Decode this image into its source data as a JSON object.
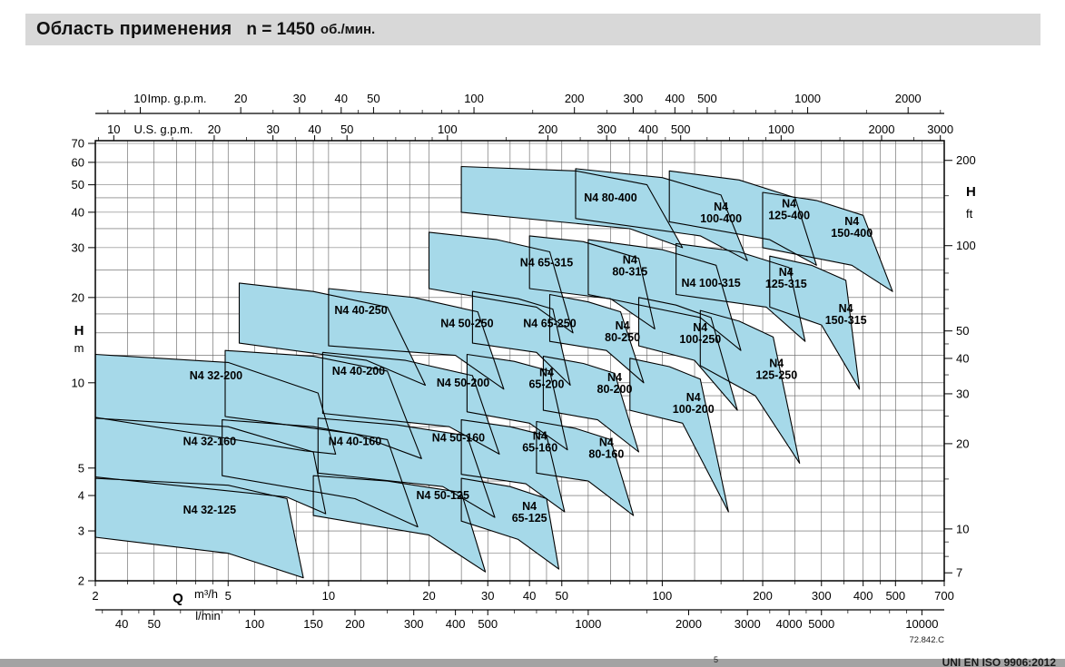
{
  "title": {
    "main": "Область применения",
    "speed": "n = 1450",
    "units": "об./мин."
  },
  "footer": {
    "drawing_number": "72.842.C",
    "standard_text": "UNI EN ISO 9906:2012",
    "footnote_marker": "5"
  },
  "colors": {
    "region_fill": "#a6d9e9",
    "region_stroke": "#000000",
    "grid_line": "#5f5f5f",
    "axis_line": "#000000",
    "title_bar_bg": "#d8d8d8",
    "footer_bar_bg": "#a3a3a3",
    "chart_bg": "#ffffff"
  },
  "chart_data": {
    "type": "area",
    "title": "Область применения n = 1450 об./мин.",
    "x_axis": {
      "symbol": "Q",
      "unit_primary": "m³/h",
      "scale": "log",
      "range_m3h": [
        2,
        700
      ],
      "ticks_m3h": [
        2,
        5,
        10,
        20,
        30,
        40,
        50,
        100,
        200,
        300,
        400,
        500,
        700
      ],
      "secondary_axes": [
        {
          "unit": "l/min",
          "factor_from_m3h": 16.6667,
          "position": "bottom",
          "ticks": [
            40,
            50,
            100,
            150,
            200,
            300,
            400,
            500,
            1000,
            2000,
            3000,
            4000,
            5000,
            10000
          ]
        },
        {
          "unit": "U.S. g.p.m.",
          "factor_from_m3h": 4.4029,
          "position": "top",
          "ticks": [
            10,
            20,
            30,
            40,
            50,
            100,
            200,
            300,
            400,
            500,
            1000,
            2000,
            3000
          ]
        },
        {
          "unit": "Imp. g.p.m.",
          "factor_from_m3h": 3.6662,
          "position": "top",
          "ticks": [
            10,
            20,
            30,
            40,
            50,
            100,
            200,
            300,
            400,
            500,
            1000,
            2000
          ]
        }
      ]
    },
    "y_axis": {
      "symbol": "H",
      "unit_primary": "m",
      "scale": "log",
      "range_m": [
        2,
        70
      ],
      "ticks_m": [
        2,
        3,
        4,
        5,
        10,
        20,
        30,
        40,
        50,
        60,
        70
      ],
      "secondary_axes": [
        {
          "unit": "ft",
          "factor_from_m": 3.2808,
          "position": "right",
          "ticks": [
            7,
            10,
            20,
            30,
            40,
            50,
            100,
            200
          ]
        }
      ]
    },
    "grid": {
      "q_lines": [
        2,
        2.5,
        3,
        3.5,
        4,
        4.5,
        5,
        6,
        7,
        8,
        9,
        10,
        12.5,
        15,
        17.5,
        20,
        25,
        30,
        35,
        40,
        45,
        50,
        60,
        70,
        80,
        90,
        100,
        125,
        150,
        175,
        200,
        250,
        300,
        350,
        400,
        450,
        500,
        600,
        700
      ],
      "h_lines": [
        2,
        2.5,
        3,
        3.5,
        4,
        4.5,
        5,
        5.5,
        6,
        7,
        8,
        9,
        10,
        12.5,
        15,
        17.5,
        20,
        25,
        30,
        35,
        40,
        45,
        50,
        60,
        70
      ]
    },
    "regions": [
      {
        "name": "N4 32-125",
        "wrap": false,
        "label_q": 4.4,
        "label_h": 3.55,
        "points": [
          [
            2,
            4.6
          ],
          [
            5,
            4.35
          ],
          [
            7.5,
            3.9
          ],
          [
            8.4,
            2.05
          ],
          [
            5,
            2.5
          ],
          [
            2,
            2.85
          ]
        ]
      },
      {
        "name": "N4 32-160",
        "wrap": false,
        "label_q": 4.4,
        "label_h": 6.2,
        "points": [
          [
            2,
            7.5
          ],
          [
            5,
            7.0
          ],
          [
            9,
            5.7
          ],
          [
            9.8,
            3.45
          ],
          [
            7.5,
            3.95
          ],
          [
            2,
            4.65
          ]
        ]
      },
      {
        "name": "N4 32-200",
        "wrap": false,
        "label_q": 4.6,
        "label_h": 10.6,
        "points": [
          [
            2,
            12.6
          ],
          [
            5,
            11.8
          ],
          [
            9.3,
            9.2
          ],
          [
            10.5,
            5.6
          ],
          [
            8.5,
            5.75
          ],
          [
            2,
            7.55
          ]
        ]
      },
      {
        "name": "N4 40-160",
        "wrap": false,
        "label_q": 12.0,
        "label_h": 6.2,
        "points": [
          [
            4.8,
            7.4
          ],
          [
            9,
            7.0
          ],
          [
            15,
            6.3
          ],
          [
            18.5,
            3.1
          ],
          [
            12,
            3.9
          ],
          [
            4.8,
            4.7
          ]
        ]
      },
      {
        "name": "N4 40-200",
        "wrap": false,
        "label_q": 12.3,
        "label_h": 11.0,
        "points": [
          [
            4.9,
            13.0
          ],
          [
            9,
            12.4
          ],
          [
            15,
            11.0
          ],
          [
            19,
            5.4
          ],
          [
            12,
            6.6
          ],
          [
            4.9,
            7.6
          ]
        ]
      },
      {
        "name": "N4 40-250",
        "wrap": false,
        "label_q": 12.5,
        "label_h": 18.0,
        "points": [
          [
            5.4,
            22.5
          ],
          [
            9,
            21.0
          ],
          [
            15,
            18.5
          ],
          [
            19.5,
            9.8
          ],
          [
            13,
            12.0
          ],
          [
            5.4,
            13.8
          ]
        ]
      },
      {
        "name": "N4 50-125",
        "wrap": false,
        "label_q": 22,
        "label_h": 4.0,
        "points": [
          [
            9,
            4.7
          ],
          [
            15,
            4.5
          ],
          [
            25,
            4.1
          ],
          [
            29.5,
            2.15
          ],
          [
            20,
            2.9
          ],
          [
            9,
            3.4
          ]
        ]
      },
      {
        "name": "N4 50-160",
        "wrap": false,
        "label_q": 24.5,
        "label_h": 6.4,
        "points": [
          [
            9.3,
            7.5
          ],
          [
            16,
            7.1
          ],
          [
            26,
            6.5
          ],
          [
            31.5,
            3.35
          ],
          [
            22,
            4.3
          ],
          [
            9.3,
            4.8
          ]
        ]
      },
      {
        "name": "N4 50-200",
        "wrap": false,
        "label_q": 25.3,
        "label_h": 10.0,
        "points": [
          [
            9.6,
            12.8
          ],
          [
            17,
            12.0
          ],
          [
            27,
            10.6
          ],
          [
            32.5,
            5.6
          ],
          [
            23,
            7.0
          ],
          [
            9.6,
            7.8
          ]
        ]
      },
      {
        "name": "N4 50-250",
        "wrap": false,
        "label_q": 26,
        "label_h": 16.2,
        "points": [
          [
            10,
            21.5
          ],
          [
            18,
            20.0
          ],
          [
            28,
            17.8
          ],
          [
            33.5,
            9.5
          ],
          [
            24,
            12.5
          ],
          [
            10,
            13.5
          ]
        ]
      },
      {
        "name": "N4 65-125",
        "wrap": true,
        "label_q": 40,
        "label_h": 3.5,
        "points": [
          [
            25,
            4.6
          ],
          [
            35,
            4.3
          ],
          [
            45,
            3.9
          ],
          [
            49,
            2.2
          ],
          [
            37,
            2.8
          ],
          [
            25,
            3.25
          ]
        ]
      },
      {
        "name": "N4 65-160",
        "wrap": true,
        "label_q": 43,
        "label_h": 6.2,
        "points": [
          [
            25,
            7.4
          ],
          [
            35,
            7.0
          ],
          [
            45,
            6.5
          ],
          [
            51,
            3.5
          ],
          [
            39,
            4.4
          ],
          [
            25,
            4.75
          ]
        ]
      },
      {
        "name": "N4 65-200",
        "wrap": true,
        "label_q": 45,
        "label_h": 10.4,
        "points": [
          [
            26,
            12.6
          ],
          [
            36,
            11.9
          ],
          [
            46,
            11.0
          ],
          [
            52,
            5.8
          ],
          [
            40,
            7.2
          ],
          [
            26,
            7.9
          ]
        ]
      },
      {
        "name": "N4 65-250",
        "wrap": false,
        "label_q": 46,
        "label_h": 16.2,
        "points": [
          [
            27,
            21.0
          ],
          [
            37,
            19.8
          ],
          [
            47,
            18.2
          ],
          [
            53,
            9.8
          ],
          [
            42,
            12.8
          ],
          [
            27,
            13.8
          ]
        ]
      },
      {
        "name": "N4 65-315",
        "wrap": false,
        "label_q": 45,
        "label_h": 26.5,
        "points": [
          [
            20,
            34.0
          ],
          [
            32,
            32.0
          ],
          [
            46,
            29.0
          ],
          [
            54,
            15.0
          ],
          [
            42,
            18.5
          ],
          [
            20,
            21.5
          ]
        ]
      },
      {
        "name": "N4 80-160",
        "wrap": true,
        "label_q": 68,
        "label_h": 5.9,
        "points": [
          [
            42,
            7.3
          ],
          [
            55,
            6.9
          ],
          [
            70,
            6.3
          ],
          [
            82,
            3.4
          ],
          [
            60,
            4.5
          ],
          [
            42,
            4.8
          ]
        ]
      },
      {
        "name": "N4 80-200",
        "wrap": true,
        "label_q": 72,
        "label_h": 10.0,
        "points": [
          [
            44,
            12.4
          ],
          [
            58,
            11.7
          ],
          [
            72,
            10.8
          ],
          [
            85,
            5.7
          ],
          [
            64,
            7.4
          ],
          [
            44,
            8.0
          ]
        ]
      },
      {
        "name": "N4 80-250",
        "wrap": true,
        "label_q": 76,
        "label_h": 15.2,
        "points": [
          [
            46,
            20.5
          ],
          [
            60,
            19.3
          ],
          [
            75,
            17.8
          ],
          [
            88,
            10.0
          ],
          [
            68,
            13.0
          ],
          [
            46,
            14.0
          ]
        ]
      },
      {
        "name": "N4 80-315",
        "wrap": true,
        "label_q": 80,
        "label_h": 26.0,
        "points": [
          [
            40,
            33.0
          ],
          [
            58,
            31.5
          ],
          [
            85,
            27.5
          ],
          [
            95,
            15.5
          ],
          [
            70,
            19.8
          ],
          [
            40,
            21.5
          ]
        ]
      },
      {
        "name": "N4 80-400",
        "wrap": false,
        "label_q": 70,
        "label_h": 45.0,
        "points": [
          [
            25,
            58.0
          ],
          [
            55,
            56.0
          ],
          [
            90,
            50.0
          ],
          [
            115,
            30.0
          ],
          [
            80,
            35.0
          ],
          [
            25,
            40.0
          ]
        ]
      },
      {
        "name": "N4 100-200",
        "wrap": true,
        "label_q": 124,
        "label_h": 8.5,
        "points": [
          [
            80,
            12.2
          ],
          [
            105,
            11.4
          ],
          [
            130,
            10.3
          ],
          [
            158,
            3.5
          ],
          [
            115,
            7.2
          ],
          [
            80,
            8.0
          ]
        ]
      },
      {
        "name": "N4 100-250",
        "wrap": true,
        "label_q": 130,
        "label_h": 15.0,
        "points": [
          [
            85,
            20.0
          ],
          [
            110,
            18.8
          ],
          [
            140,
            17.0
          ],
          [
            168,
            8.0
          ],
          [
            125,
            12.0
          ],
          [
            85,
            13.5
          ]
        ]
      },
      {
        "name": "N4 100-315",
        "wrap": false,
        "label_q": 140,
        "label_h": 22.5,
        "points": [
          [
            60,
            32.0
          ],
          [
            100,
            29.5
          ],
          [
            145,
            26.0
          ],
          [
            172,
            13.0
          ],
          [
            130,
            17.0
          ],
          [
            60,
            20.5
          ]
        ]
      },
      {
        "name": "N4 100-400",
        "wrap": true,
        "label_q": 150,
        "label_h": 40.0,
        "points": [
          [
            55,
            57.0
          ],
          [
            100,
            53.0
          ],
          [
            150,
            46.0
          ],
          [
            180,
            27.0
          ],
          [
            130,
            33.0
          ],
          [
            55,
            38.0
          ]
        ]
      },
      {
        "name": "N4 125-250",
        "wrap": true,
        "label_q": 220,
        "label_h": 11.2,
        "points": [
          [
            130,
            18.0
          ],
          [
            170,
            16.5
          ],
          [
            215,
            14.5
          ],
          [
            258,
            5.2
          ],
          [
            190,
            9.0
          ],
          [
            130,
            11.5
          ]
        ]
      },
      {
        "name": "N4 125-315",
        "wrap": true,
        "label_q": 235,
        "label_h": 23.5,
        "points": [
          [
            110,
            31.0
          ],
          [
            170,
            29.0
          ],
          [
            240,
            25.5
          ],
          [
            268,
            14.0
          ],
          [
            205,
            18.5
          ],
          [
            110,
            20.5
          ]
        ]
      },
      {
        "name": "N4 125-400",
        "wrap": true,
        "label_q": 240,
        "label_h": 41.0,
        "points": [
          [
            105,
            56.0
          ],
          [
            170,
            52.0
          ],
          [
            250,
            45.0
          ],
          [
            290,
            26.0
          ],
          [
            210,
            32.0
          ],
          [
            105,
            37.0
          ]
        ]
      },
      {
        "name": "N4 150-315",
        "wrap": true,
        "label_q": 355,
        "label_h": 17.5,
        "points": [
          [
            210,
            28.0
          ],
          [
            280,
            26.0
          ],
          [
            355,
            23.0
          ],
          [
            390,
            9.5
          ],
          [
            300,
            16.0
          ],
          [
            210,
            18.5
          ]
        ]
      },
      {
        "name": "N4 150-400",
        "wrap": true,
        "label_q": 370,
        "label_h": 35.5,
        "points": [
          [
            200,
            47.0
          ],
          [
            290,
            44.0
          ],
          [
            400,
            39.0
          ],
          [
            490,
            21.0
          ],
          [
            370,
            26.0
          ],
          [
            200,
            30.0
          ]
        ]
      }
    ]
  }
}
